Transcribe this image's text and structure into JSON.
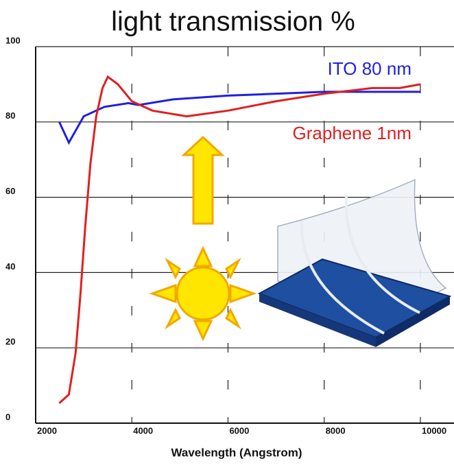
{
  "chart_data": {
    "type": "line",
    "title": "light transmission %",
    "x_label": "Wavelength (Angstrom)",
    "xlim": [
      2000,
      10700
    ],
    "xticks": [
      2000,
      4000,
      6000,
      8000,
      10000
    ],
    "ylim": [
      0,
      100
    ],
    "yticks": [
      0,
      20,
      40,
      60,
      80,
      100
    ],
    "grid": true,
    "series": [
      {
        "name": "ITO 80 nm",
        "color": "#1f1fe0",
        "x": [
          2490,
          2690,
          3000,
          3430,
          3930,
          4140,
          4860,
          6000,
          8000,
          10000
        ],
        "values": [
          80,
          74.5,
          81.5,
          84,
          85,
          84.5,
          86,
          87,
          88,
          88
        ]
      },
      {
        "name": "Graphene 1nm",
        "color": "#e01f1f",
        "x": [
          2490,
          2690,
          2830,
          2930,
          3030,
          3140,
          3260,
          3390,
          3500,
          3710,
          4000,
          4430,
          5140,
          6000,
          7000,
          8000,
          9000,
          9570,
          10000
        ],
        "values": [
          5.3,
          7.6,
          18.6,
          34,
          52,
          69,
          81.5,
          89,
          92,
          90,
          85.5,
          83,
          81.5,
          83,
          85.5,
          87.5,
          89,
          89,
          90
        ]
      }
    ]
  }
}
